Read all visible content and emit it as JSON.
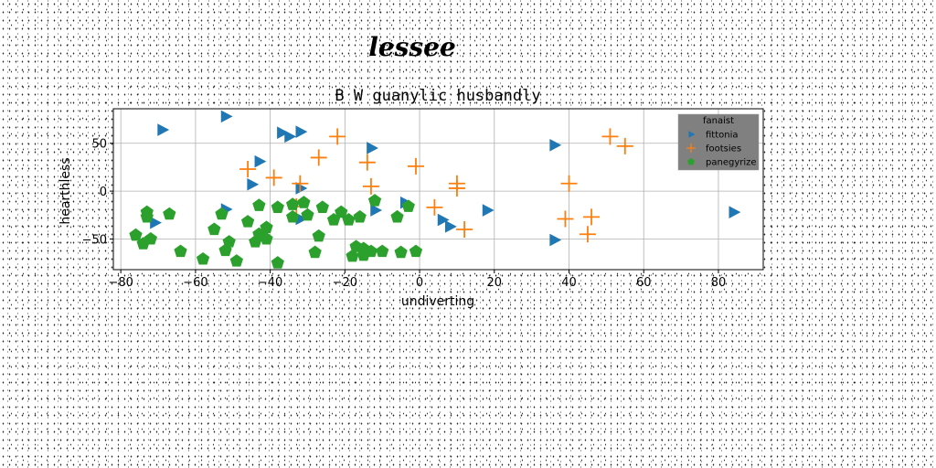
{
  "chart_data": {
    "type": "scatter",
    "suptitle": "lessee",
    "title": "B W guanylic husbandly",
    "xlabel": "undiverting",
    "ylabel": "hearthless",
    "xlim": [
      -82,
      92
    ],
    "ylim": [
      -82,
      86
    ],
    "xticks": [
      -80,
      -60,
      -40,
      -20,
      0,
      20,
      40,
      60,
      80
    ],
    "yticks": [
      -50,
      0,
      50
    ],
    "grid": true,
    "legend": {
      "title": "fanaist",
      "placement": "top-right",
      "bg_color": "#808080"
    },
    "series": [
      {
        "name": "fittonia",
        "marker": "triangle-right",
        "color": "#1f77b4",
        "points": [
          [
            -69,
            64
          ],
          [
            -52,
            78
          ],
          [
            -37,
            61
          ],
          [
            -35,
            57
          ],
          [
            -32,
            62
          ],
          [
            -43,
            31
          ],
          [
            -45,
            7
          ],
          [
            -32,
            3
          ],
          [
            -52,
            -19
          ],
          [
            -71,
            -33
          ],
          [
            -32,
            -29
          ],
          [
            -13,
            45
          ],
          [
            -12,
            -20
          ],
          [
            -4,
            -12
          ],
          [
            6,
            -30
          ],
          [
            8,
            -37
          ],
          [
            18,
            -20
          ],
          [
            36,
            48
          ],
          [
            36,
            -51
          ],
          [
            84,
            -22
          ]
        ]
      },
      {
        "name": "footsies",
        "marker": "plus",
        "color": "#ff7f0e",
        "points": [
          [
            -22,
            57
          ],
          [
            -27,
            35
          ],
          [
            -14,
            30
          ],
          [
            -46,
            23
          ],
          [
            -39,
            14
          ],
          [
            -32,
            8
          ],
          [
            -13,
            5
          ],
          [
            -33,
            -16
          ],
          [
            -1,
            26
          ],
          [
            10,
            8
          ],
          [
            10,
            3
          ],
          [
            4,
            -17
          ],
          [
            12,
            -40
          ],
          [
            40,
            8
          ],
          [
            39,
            -29
          ],
          [
            46,
            -27
          ],
          [
            45,
            -45
          ],
          [
            51,
            57
          ],
          [
            55,
            47
          ]
        ]
      },
      {
        "name": "panegyrize",
        "marker": "pentagon",
        "color": "#2ca02c",
        "points": [
          [
            -73,
            -22
          ],
          [
            -67,
            -24
          ],
          [
            -73,
            -27
          ],
          [
            -53,
            -24
          ],
          [
            -43,
            -15
          ],
          [
            -38,
            -17
          ],
          [
            -34,
            -14
          ],
          [
            -31,
            -12
          ],
          [
            -26,
            -17
          ],
          [
            -21,
            -22
          ],
          [
            -19,
            -30
          ],
          [
            -16,
            -27
          ],
          [
            -12,
            -10
          ],
          [
            -6,
            -27
          ],
          [
            -3,
            -16
          ],
          [
            -46,
            -32
          ],
          [
            -41,
            -38
          ],
          [
            -34,
            -27
          ],
          [
            -30,
            -25
          ],
          [
            -23,
            -30
          ],
          [
            -55,
            -40
          ],
          [
            -43,
            -45
          ],
          [
            -41,
            -50
          ],
          [
            -44,
            -53
          ],
          [
            -51,
            -53
          ],
          [
            -27,
            -47
          ],
          [
            -76,
            -46
          ],
          [
            -72,
            -50
          ],
          [
            -74,
            -55
          ],
          [
            -64,
            -63
          ],
          [
            -58,
            -71
          ],
          [
            -52,
            -62
          ],
          [
            -49,
            -73
          ],
          [
            -38,
            -75
          ],
          [
            -28,
            -64
          ],
          [
            -18,
            -68
          ],
          [
            -17,
            -58
          ],
          [
            -15,
            -60
          ],
          [
            -13,
            -63
          ],
          [
            -10,
            -63
          ],
          [
            -5,
            -64
          ],
          [
            -1,
            -63
          ],
          [
            -15,
            -67
          ]
        ]
      }
    ]
  }
}
